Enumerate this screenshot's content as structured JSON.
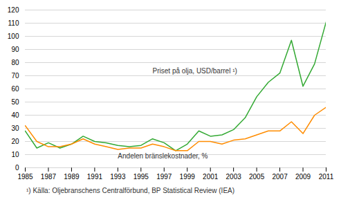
{
  "chart_data": {
    "type": "line",
    "x": [
      1985,
      1986,
      1987,
      1988,
      1989,
      1990,
      1991,
      1992,
      1993,
      1994,
      1995,
      1996,
      1997,
      1998,
      1999,
      2000,
      2001,
      2002,
      2003,
      2004,
      2005,
      2006,
      2007,
      2008,
      2009,
      2010,
      2011
    ],
    "series": [
      {
        "color": "#33a933",
        "values": [
          28,
          15,
          19,
          15,
          18,
          24,
          20,
          19,
          17,
          16,
          17,
          22,
          19,
          13,
          18,
          28,
          24,
          25,
          29,
          38,
          54,
          65,
          72,
          97,
          62,
          79,
          111
        ]
      },
      {
        "color": "#ff8c00",
        "values": [
          32,
          20,
          16,
          16,
          18,
          22,
          18,
          16,
          14,
          15,
          15,
          18,
          16,
          13,
          13,
          20,
          20,
          18,
          21,
          22,
          25,
          28,
          28,
          35,
          26,
          40,
          46
        ]
      }
    ],
    "xlim": [
      1985,
      2011
    ],
    "xticks": [
      1985,
      1987,
      1989,
      1991,
      1993,
      1995,
      1997,
      1999,
      2001,
      2003,
      2005,
      2007,
      2009,
      2011
    ],
    "ylim": [
      0,
      120
    ],
    "yticks": [
      0,
      10,
      20,
      30,
      40,
      50,
      60,
      70,
      80,
      90,
      100,
      110,
      120
    ],
    "grid": true,
    "annotations": [
      {
        "text": "Priset på olja, USD/barrel ¹)",
        "x": 1996,
        "y": 72
      },
      {
        "text": "Andelen bränslekostnader, %",
        "x": 1993,
        "y": 7
      }
    ],
    "caption": "¹) Källa: Oljebranschens Centralförbund, BP Statistical Review (IEA)"
  }
}
